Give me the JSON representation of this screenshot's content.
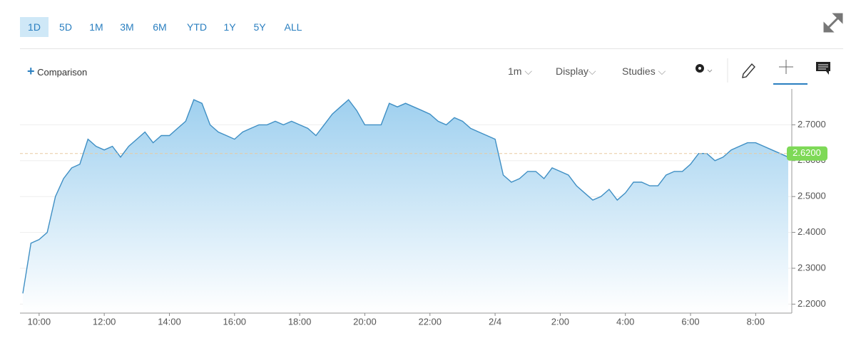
{
  "toolbar": {
    "ranges": [
      "1D",
      "5D",
      "1M",
      "3M",
      "6M",
      "YTD",
      "1Y",
      "5Y",
      "ALL"
    ],
    "comparison": "Comparison",
    "interval": "1m",
    "display": "Display",
    "studies": "Studies"
  },
  "chart_data": {
    "type": "area",
    "categories": [
      null,
      null,
      "10:00",
      null,
      null,
      null,
      null,
      null,
      null,
      null,
      "12:00",
      null,
      null,
      null,
      null,
      null,
      null,
      null,
      "14:00",
      null,
      null,
      null,
      null,
      null,
      null,
      null,
      "16:00",
      null,
      null,
      null,
      null,
      null,
      null,
      null,
      "18:00",
      null,
      null,
      null,
      null,
      null,
      null,
      null,
      "20:00",
      null,
      null,
      null,
      null,
      null,
      null,
      null,
      "22:00",
      null,
      null,
      null,
      null,
      null,
      null,
      null,
      "2/4",
      null,
      null,
      null,
      null,
      null,
      null,
      null,
      "2:00",
      null,
      null,
      null,
      null,
      null,
      null,
      null,
      "4:00",
      null,
      null,
      null,
      null,
      null,
      null,
      null,
      "6:00",
      null,
      null,
      null,
      null,
      null,
      null,
      null,
      "8:00",
      null,
      null,
      null,
      null
    ],
    "values": [
      2.23,
      2.37,
      2.38,
      2.4,
      2.5,
      2.55,
      2.58,
      2.59,
      2.66,
      2.64,
      2.63,
      2.64,
      2.61,
      2.64,
      2.66,
      2.68,
      2.65,
      2.67,
      2.67,
      2.69,
      2.71,
      2.77,
      2.76,
      2.7,
      2.68,
      2.67,
      2.66,
      2.68,
      2.69,
      2.7,
      2.7,
      2.71,
      2.7,
      2.71,
      2.7,
      2.69,
      2.67,
      2.7,
      2.73,
      2.75,
      2.77,
      2.74,
      2.7,
      2.7,
      2.7,
      2.76,
      2.75,
      2.76,
      2.75,
      2.74,
      2.73,
      2.71,
      2.7,
      2.72,
      2.71,
      2.69,
      2.68,
      2.67,
      2.66,
      2.56,
      2.54,
      2.55,
      2.57,
      2.57,
      2.55,
      2.58,
      2.57,
      2.56,
      2.53,
      2.51,
      2.49,
      2.5,
      2.52,
      2.49,
      2.51,
      2.54,
      2.54,
      2.53,
      2.53,
      2.56,
      2.57,
      2.57,
      2.59,
      2.62,
      2.62,
      2.6,
      2.61,
      2.63,
      2.64,
      2.65,
      2.65,
      2.64,
      2.63,
      2.62,
      2.61
    ],
    "color": "#3f8fc4",
    "ylim": [
      2.175,
      2.8
    ],
    "yticks": [
      {
        "value": 2.2,
        "label": "2.2000"
      },
      {
        "value": 2.3,
        "label": "2.3000"
      },
      {
        "value": 2.4,
        "label": "2.4000"
      },
      {
        "value": 2.5,
        "label": "2.5000"
      },
      {
        "value": 2.6,
        "label": "2.6000"
      },
      {
        "value": 2.7,
        "label": "2.7000"
      }
    ],
    "reference_line": {
      "value": 2.62,
      "label": "2.6200",
      "color": "#7ed957"
    },
    "grid": true
  }
}
